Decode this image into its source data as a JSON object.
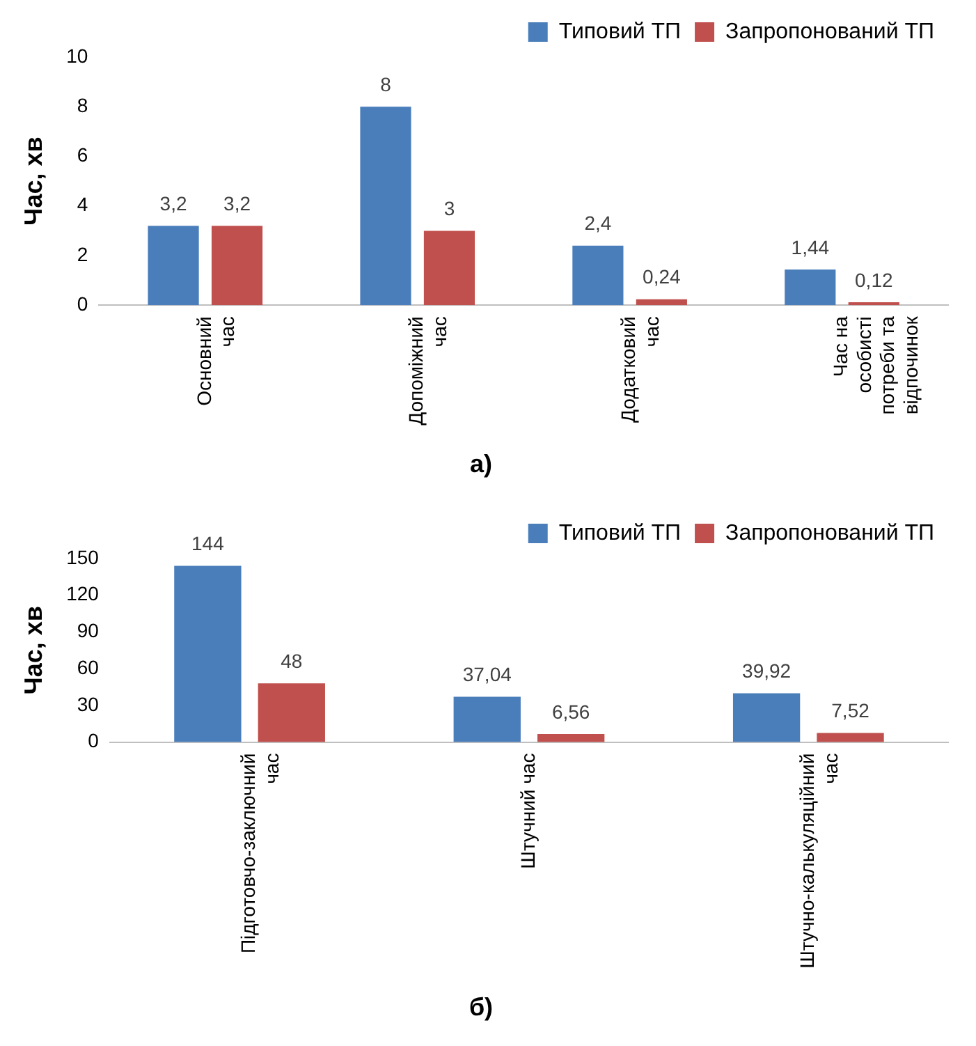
{
  "chart_data": [
    {
      "type": "bar",
      "title": "а)",
      "ylabel": "Час, хв",
      "categories": [
        "Основний час",
        "Допоміжний час",
        "Додатковий час",
        "Час на особисті потреби та відпочинок"
      ],
      "series": [
        {
          "name": "Типовий ТП",
          "color": "#4a7ebb",
          "values": [
            3.2,
            8,
            2.4,
            1.44
          ],
          "value_labels": [
            "3,2",
            "8",
            "2,4",
            "1,44"
          ]
        },
        {
          "name": "Запропонований ТП",
          "color": "#c0504d",
          "values": [
            3.2,
            3,
            0.24,
            0.12
          ],
          "value_labels": [
            "3,2",
            "3",
            "0,24",
            "0,12"
          ]
        }
      ],
      "ylim": [
        0,
        10
      ],
      "yticks": [
        0,
        2,
        4,
        6,
        8,
        10
      ],
      "grid": false,
      "legend": "top right"
    },
    {
      "type": "bar",
      "title": "б)",
      "ylabel": "Час, хв",
      "categories": [
        "Підготовчо-заключний час",
        "Штучний час",
        "Штучно-калькуляційний час"
      ],
      "series": [
        {
          "name": "Типовий ТП",
          "color": "#4a7ebb",
          "values": [
            144,
            37.04,
            39.92
          ],
          "value_labels": [
            "144",
            "37,04",
            "39,92"
          ]
        },
        {
          "name": "Запропонований ТП",
          "color": "#c0504d",
          "values": [
            48,
            6.56,
            7.52
          ],
          "value_labels": [
            "48",
            "6,56",
            "7,52"
          ]
        }
      ],
      "ylim": [
        0,
        150
      ],
      "yticks": [
        0,
        30,
        60,
        90,
        120,
        150
      ],
      "grid": false,
      "legend": "top right"
    }
  ]
}
